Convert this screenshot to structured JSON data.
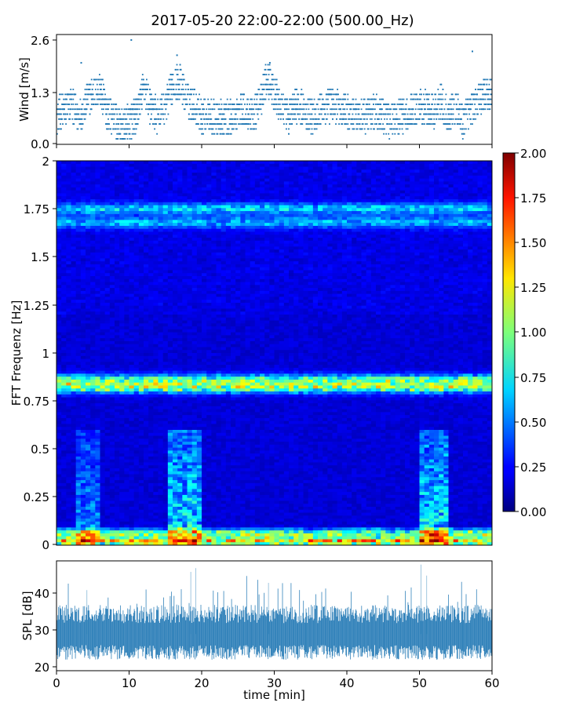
{
  "title": "2017-05-20 22:00-22:00 (500.00_Hz)",
  "chart_data": [
    {
      "type": "scatter",
      "name": "wind",
      "ylabel": "Wind [m/s]",
      "xlim": [
        0,
        60
      ],
      "ylim": [
        0,
        2.6
      ],
      "yticks": [
        "0.0",
        "1.3",
        "2.6"
      ],
      "marker_color": "#1f77b4",
      "keyframes": {
        "x": [
          0,
          2,
          3,
          5,
          6,
          7,
          9,
          11,
          12,
          13,
          14,
          15,
          16,
          17,
          18,
          19,
          20,
          21,
          22,
          24,
          26,
          27,
          28,
          29,
          30,
          31,
          32,
          33,
          34,
          35,
          36,
          37,
          38,
          40,
          42,
          44,
          46,
          48,
          50,
          52,
          53,
          54,
          55,
          56,
          57,
          58,
          59,
          60
        ],
        "y": [
          0.6,
          0.9,
          0.6,
          1.2,
          1.3,
          0.7,
          0.3,
          0.6,
          1.4,
          0.8,
          0.6,
          0.9,
          1.4,
          1.5,
          1.0,
          0.9,
          0.6,
          0.7,
          0.5,
          0.6,
          0.8,
          0.6,
          0.9,
          1.6,
          1.2,
          0.8,
          0.6,
          0.9,
          0.8,
          0.6,
          0.7,
          0.8,
          0.9,
          0.7,
          0.6,
          0.7,
          0.5,
          0.6,
          0.9,
          0.7,
          1.0,
          0.6,
          0.8,
          0.5,
          0.8,
          1.0,
          1.2,
          1.2
        ]
      },
      "outliers": [
        {
          "x": 10.3,
          "y": 2.6
        },
        {
          "x": 16.6,
          "y": 2.2
        },
        {
          "x": 57.3,
          "y": 2.3
        },
        {
          "x": 29.4,
          "y": 2.0
        },
        {
          "x": 3.4,
          "y": 2.0
        }
      ]
    },
    {
      "type": "heatmap",
      "name": "spectrogram",
      "ylabel": "FFT Frequenz [Hz]",
      "xlim": [
        0,
        60
      ],
      "ylim": [
        0,
        2
      ],
      "yticks": [
        "0",
        "0.25",
        "0.5",
        "0.75",
        "1",
        "1.25",
        "1.5",
        "1.75",
        "2"
      ],
      "colormap": "jet",
      "clim": [
        0,
        2
      ],
      "colorbar_ticks": [
        "0.00",
        "0.25",
        "0.50",
        "0.75",
        "1.00",
        "1.25",
        "1.50",
        "1.75",
        "2.00"
      ],
      "bands": [
        {
          "freq": 0.02,
          "level": 1.1
        },
        {
          "freq": 0.06,
          "level": 0.75
        },
        {
          "freq": 0.82,
          "level": 0.85
        },
        {
          "freq": 0.86,
          "level": 0.7
        },
        {
          "freq": 1.68,
          "level": 0.45
        },
        {
          "freq": 1.75,
          "level": 0.5
        }
      ],
      "bursts": [
        {
          "t_start": 2.5,
          "t_end": 6.3,
          "fmax": 0.6,
          "level": 0.45
        },
        {
          "t_start": 15.5,
          "t_end": 20.0,
          "fmax": 0.6,
          "level": 0.7
        },
        {
          "t_start": 49.8,
          "t_end": 53.8,
          "fmax": 0.6,
          "level": 0.7
        }
      ]
    },
    {
      "type": "area",
      "name": "spl",
      "ylabel": "SPL [dB]",
      "xlabel": "time [min]",
      "xlim": [
        0,
        60
      ],
      "ylim": [
        19,
        49
      ],
      "yticks": [
        "20",
        "30",
        "40"
      ],
      "xticks": [
        "0",
        "10",
        "20",
        "30",
        "40",
        "50",
        "60"
      ],
      "color": "#1f77b4",
      "mean_db": 29,
      "spikes": [
        {
          "x": 18.5,
          "y": 46
        },
        {
          "x": 19.2,
          "y": 47
        },
        {
          "x": 29.2,
          "y": 43
        },
        {
          "x": 50.2,
          "y": 48
        },
        {
          "x": 51.0,
          "y": 45
        },
        {
          "x": 4.2,
          "y": 41
        }
      ]
    }
  ]
}
